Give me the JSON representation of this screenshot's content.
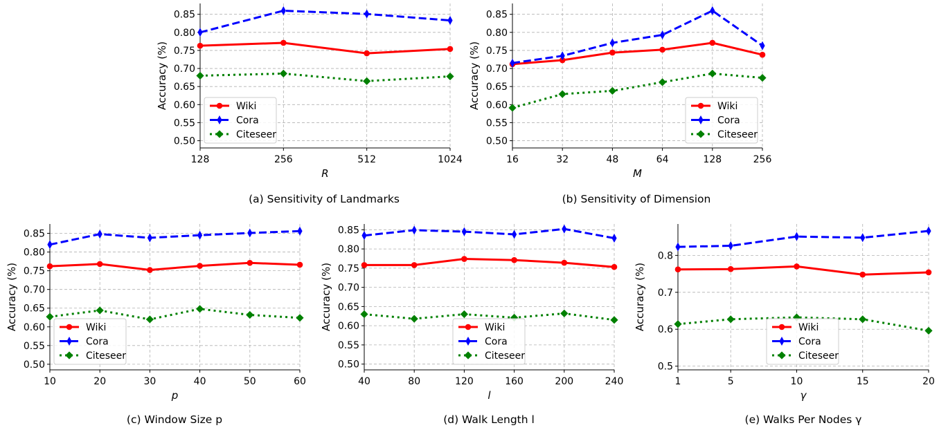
{
  "chart_data": [
    {
      "type": "line",
      "caption": "(a) Sensitivity of Landmarks",
      "xlabel": "R",
      "ylabel": "Accuracy (%)",
      "categories": [
        "128",
        "256",
        "512",
        "1024"
      ],
      "ylim": [
        0.48,
        0.88
      ],
      "yticks": [
        "0.50",
        "0.55",
        "0.60",
        "0.65",
        "0.70",
        "0.75",
        "0.80",
        "0.85"
      ],
      "legend": "lower-left",
      "grid": true,
      "series": [
        {
          "name": "Wiki",
          "values": [
            0.763,
            0.771,
            0.742,
            0.754
          ]
        },
        {
          "name": "Cora",
          "values": [
            0.8,
            0.86,
            0.851,
            0.833
          ]
        },
        {
          "name": "Citeseer",
          "values": [
            0.68,
            0.686,
            0.665,
            0.678
          ]
        }
      ]
    },
    {
      "type": "line",
      "caption": "(b) Sensitivity of Dimension",
      "xlabel": "M",
      "ylabel": "Accuracy (%)",
      "categories": [
        "16",
        "32",
        "48",
        "64",
        "128",
        "256"
      ],
      "ylim": [
        0.48,
        0.88
      ],
      "yticks": [
        "0.50",
        "0.55",
        "0.60",
        "0.65",
        "0.70",
        "0.75",
        "0.80",
        "0.85"
      ],
      "legend": "lower-right",
      "grid": true,
      "series": [
        {
          "name": "Wiki",
          "values": [
            0.712,
            0.723,
            0.744,
            0.752,
            0.771,
            0.738
          ]
        },
        {
          "name": "Cora",
          "values": [
            0.715,
            0.735,
            0.771,
            0.793,
            0.86,
            0.763
          ]
        },
        {
          "name": "Citeseer",
          "values": [
            0.591,
            0.629,
            0.638,
            0.662,
            0.686,
            0.674
          ]
        }
      ]
    },
    {
      "type": "line",
      "caption": "(c) Window Size p",
      "xlabel": "p",
      "ylabel": "Accuracy (%)",
      "categories": [
        "10",
        "20",
        "30",
        "40",
        "50",
        "60"
      ],
      "ylim": [
        0.485,
        0.875
      ],
      "yticks": [
        "0.50",
        "0.55",
        "0.60",
        "0.65",
        "0.70",
        "0.75",
        "0.80",
        "0.85"
      ],
      "legend": "lower-left",
      "grid": true,
      "series": [
        {
          "name": "Wiki",
          "values": [
            0.762,
            0.768,
            0.752,
            0.763,
            0.771,
            0.766
          ]
        },
        {
          "name": "Cora",
          "values": [
            0.82,
            0.848,
            0.838,
            0.845,
            0.851,
            0.856
          ]
        },
        {
          "name": "Citeseer",
          "values": [
            0.627,
            0.644,
            0.62,
            0.648,
            0.632,
            0.624
          ]
        }
      ]
    },
    {
      "type": "line",
      "caption": "(d) Walk Length l",
      "xlabel": "l",
      "ylabel": "Accuracy (%)",
      "categories": [
        "40",
        "80",
        "120",
        "160",
        "200",
        "240"
      ],
      "ylim": [
        0.485,
        0.865
      ],
      "yticks": [
        "0.50",
        "0.55",
        "0.60",
        "0.65",
        "0.70",
        "0.75",
        "0.80",
        "0.85"
      ],
      "legend": "lower-center",
      "grid": true,
      "series": [
        {
          "name": "Wiki",
          "values": [
            0.758,
            0.758,
            0.774,
            0.771,
            0.764,
            0.753
          ]
        },
        {
          "name": "Cora",
          "values": [
            0.835,
            0.849,
            0.845,
            0.838,
            0.852,
            0.828
          ]
        },
        {
          "name": "Citeseer",
          "values": [
            0.63,
            0.618,
            0.63,
            0.621,
            0.632,
            0.615
          ]
        }
      ]
    },
    {
      "type": "line",
      "caption": "(e) Walks Per Nodes γ",
      "xlabel": "γ",
      "ylabel": "Accuracy (%)",
      "categories": [
        "1",
        "5",
        "10",
        "15",
        "20"
      ],
      "x": [
        1,
        5,
        10,
        15,
        20
      ],
      "ylim": [
        0.49,
        0.885
      ],
      "yticks": [
        "0.5",
        "0.6",
        "0.7",
        "0.8"
      ],
      "legend": "lower-center",
      "grid": true,
      "series": [
        {
          "name": "Wiki",
          "values": [
            0.762,
            0.763,
            0.77,
            0.748,
            0.754
          ]
        },
        {
          "name": "Cora",
          "values": [
            0.823,
            0.826,
            0.851,
            0.848,
            0.866
          ]
        },
        {
          "name": "Citeseer",
          "values": [
            0.614,
            0.627,
            0.632,
            0.627,
            0.596
          ]
        }
      ]
    }
  ],
  "style": {
    "Wiki": {
      "color": "#ff0000",
      "marker": "circle",
      "dash": "solid"
    },
    "Cora": {
      "color": "#0000ff",
      "marker": "thin-diamond",
      "dash": "dashed"
    },
    "Citeseer": {
      "color": "#008000",
      "marker": "diamond",
      "dash": "dotted"
    }
  }
}
